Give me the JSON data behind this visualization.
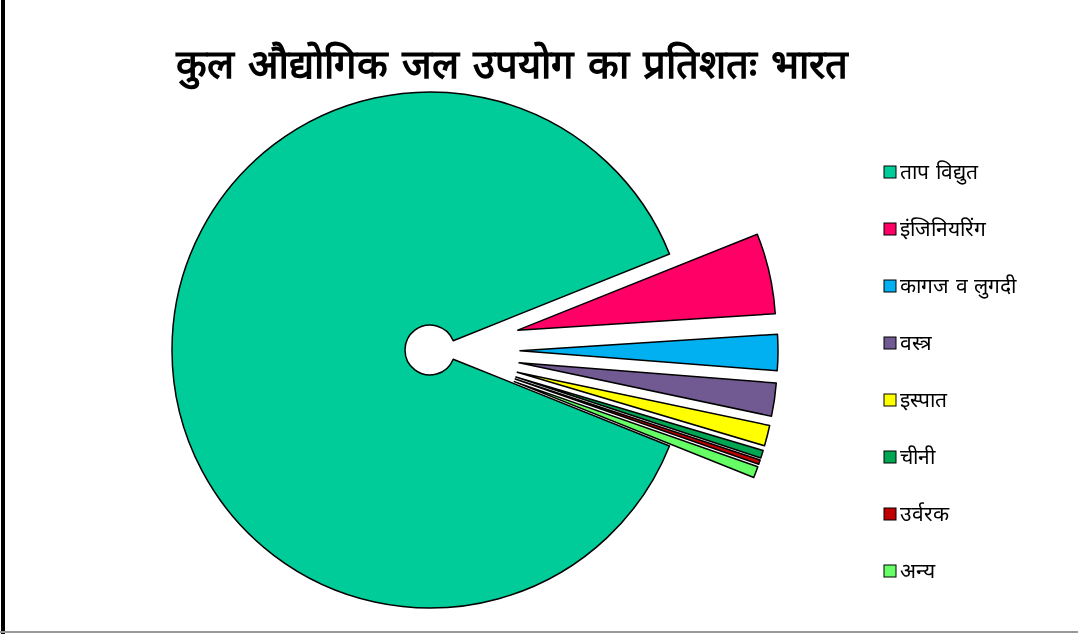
{
  "chart_data": {
    "type": "pie",
    "title": "कुल औद्योगिक जल उपयोग का प्रतिशतः भारत",
    "categories": [
      "ताप विद्युत",
      "इंजिनियरिंग",
      "कागज व लुगदी",
      "वस्त्र",
      "इस्पात",
      "चीनी",
      "उर्वरक",
      "अन्य"
    ],
    "values": [
      87.87,
      5.05,
      2.26,
      2.07,
      1.29,
      0.48,
      0.27,
      0.71
    ],
    "colors": [
      "#00cc99",
      "#ff0066",
      "#00b0f0",
      "#705a91",
      "#ffff00",
      "#00a651",
      "#c00000",
      "#66ff66"
    ],
    "legend": "right"
  }
}
